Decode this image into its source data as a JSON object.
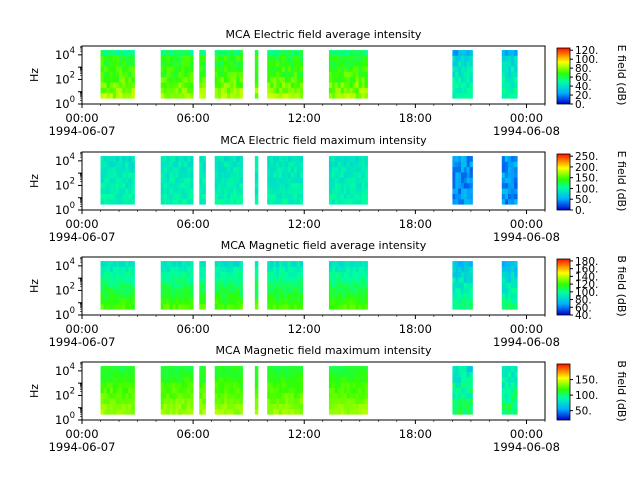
{
  "page": {
    "x_tick_labels": [
      "00:00",
      "06:00",
      "12:00",
      "18:00",
      "00:00"
    ],
    "x_tick_dates": [
      "1994-06-07",
      "",
      "",
      "",
      "1994-06-08"
    ]
  },
  "chart_data": [
    {
      "type": "heatmap",
      "title": "MCA  Electric field average intensity",
      "xlabel": "",
      "ylabel": "Hz",
      "y_scale": "log",
      "y_tick_labels": [
        "10^0",
        "10^2",
        "10^4"
      ],
      "colorbar_label": "E field (dB)",
      "colorbar_range": [
        0,
        125
      ],
      "colorbar_ticks": [
        "0.",
        "20.",
        "40.",
        "60.",
        "80.",
        "100.",
        "120."
      ],
      "colormap": "rainbow (blue→cyan→green→yellow→red)",
      "x_range": [
        "1994-06-07 00:00",
        "1994-06-08 01:00"
      ],
      "data_blocks": [
        [
          "01:00",
          "02:50"
        ],
        [
          "04:15",
          "06:00"
        ],
        [
          "06:20",
          "06:40"
        ],
        [
          "07:10",
          "08:40"
        ],
        [
          "09:20",
          "09:30"
        ],
        [
          "10:00",
          "11:55"
        ],
        [
          "13:20",
          "15:25"
        ],
        [
          "20:00",
          "21:05"
        ],
        [
          "22:40",
          "23:30"
        ]
      ]
    },
    {
      "type": "heatmap",
      "title": "MCA  Electric field maximum intensity",
      "xlabel": "",
      "ylabel": "Hz",
      "y_scale": "log",
      "y_tick_labels": [
        "10^0",
        "10^2",
        "10^4"
      ],
      "colorbar_label": "E field (dB)",
      "colorbar_range": [
        0,
        260
      ],
      "colorbar_ticks": [
        "0.",
        "50.",
        "100.",
        "150.",
        "200.",
        "250."
      ],
      "colormap": "rainbow (blue→cyan→green→yellow→red)",
      "x_range": [
        "1994-06-07 00:00",
        "1994-06-08 01:00"
      ],
      "data_blocks": [
        [
          "01:00",
          "02:50"
        ],
        [
          "04:15",
          "06:00"
        ],
        [
          "06:20",
          "06:40"
        ],
        [
          "07:10",
          "08:40"
        ],
        [
          "09:20",
          "09:30"
        ],
        [
          "10:00",
          "11:55"
        ],
        [
          "13:20",
          "15:25"
        ],
        [
          "20:00",
          "21:05"
        ],
        [
          "22:40",
          "23:30"
        ]
      ]
    },
    {
      "type": "heatmap",
      "title": "MCA  Magnetic field average intensity",
      "xlabel": "",
      "ylabel": "Hz",
      "y_scale": "log",
      "y_tick_labels": [
        "10^0",
        "10^2",
        "10^4"
      ],
      "colorbar_label": "B field (dB)",
      "colorbar_range": [
        40,
        185
      ],
      "colorbar_ticks": [
        "40.",
        "60.",
        "80.",
        "100.",
        "120.",
        "140.",
        "160.",
        "180."
      ],
      "colormap": "rainbow (blue→cyan→green→yellow→red)",
      "x_range": [
        "1994-06-07 00:00",
        "1994-06-08 01:00"
      ],
      "data_blocks": [
        [
          "01:00",
          "02:50"
        ],
        [
          "04:15",
          "06:00"
        ],
        [
          "06:20",
          "06:40"
        ],
        [
          "07:10",
          "08:40"
        ],
        [
          "09:20",
          "09:30"
        ],
        [
          "10:00",
          "11:55"
        ],
        [
          "13:20",
          "15:25"
        ],
        [
          "20:00",
          "21:05"
        ],
        [
          "22:40",
          "23:30"
        ]
      ]
    },
    {
      "type": "heatmap",
      "title": "MCA  Magnetic field maximum intensity",
      "xlabel": "",
      "ylabel": "Hz",
      "y_scale": "log",
      "y_tick_labels": [
        "10^0",
        "10^2",
        "10^4"
      ],
      "colorbar_label": "B field (dB)",
      "colorbar_range": [
        20,
        200
      ],
      "colorbar_ticks": [
        "50.",
        "100.",
        "150."
      ],
      "colormap": "rainbow (blue→cyan→green→yellow→red)",
      "x_range": [
        "1994-06-07 00:00",
        "1994-06-08 01:00"
      ],
      "data_blocks": [
        [
          "01:00",
          "02:50"
        ],
        [
          "04:15",
          "06:00"
        ],
        [
          "06:20",
          "06:40"
        ],
        [
          "07:10",
          "08:40"
        ],
        [
          "09:20",
          "09:30"
        ],
        [
          "10:00",
          "11:55"
        ],
        [
          "13:20",
          "15:25"
        ],
        [
          "20:00",
          "21:05"
        ],
        [
          "22:40",
          "23:30"
        ]
      ]
    }
  ]
}
